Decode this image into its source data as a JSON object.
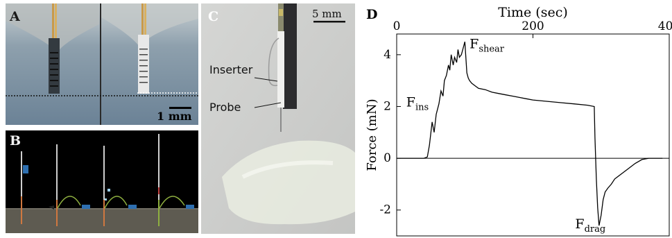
{
  "panels": {
    "a": {
      "letter": "A",
      "scale_label": "1 mm"
    },
    "b": {
      "letter": "B"
    },
    "c": {
      "letter": "C",
      "scale_label": "5 mm",
      "inserter_label": "Inserter",
      "probe_label": "Probe"
    },
    "d": {
      "letter": "D"
    }
  },
  "chart_data": {
    "type": "line",
    "title": "",
    "xlabel": "Time (sec)",
    "ylabel": "Force (mN)",
    "xaxis_position": "top",
    "xlim": [
      0,
      400
    ],
    "ylim": [
      -3,
      4.8
    ],
    "xticks": [
      0,
      200,
      400
    ],
    "yticks": [
      -2,
      0,
      2,
      4
    ],
    "grid": false,
    "zero_line": true,
    "series": [
      {
        "x": [
          0,
          10,
          20,
          30,
          40,
          45,
          48,
          52,
          55,
          58,
          62,
          65,
          68,
          70,
          73,
          76,
          78,
          80,
          83,
          85,
          88,
          90,
          92,
          95,
          97,
          100,
          103,
          105,
          107,
          110,
          115,
          120,
          130,
          140,
          150,
          160,
          170,
          180,
          190,
          200,
          220,
          240,
          260,
          280,
          290,
          291,
          293,
          295,
          297,
          300,
          303,
          306,
          310,
          315,
          320,
          330,
          340,
          350,
          360,
          370,
          380,
          390
        ],
        "y": [
          0.0,
          0.0,
          0.0,
          0.0,
          0.0,
          0.05,
          0.5,
          1.4,
          1.0,
          1.7,
          2.1,
          2.6,
          2.4,
          3.0,
          3.2,
          3.6,
          3.4,
          4.0,
          3.6,
          3.9,
          3.7,
          4.2,
          3.9,
          4.0,
          4.2,
          4.5,
          3.3,
          3.1,
          3.0,
          2.9,
          2.8,
          2.7,
          2.65,
          2.55,
          2.5,
          2.45,
          2.4,
          2.35,
          2.3,
          2.25,
          2.2,
          2.15,
          2.1,
          2.05,
          2.0,
          0.8,
          -0.8,
          -1.9,
          -2.6,
          -2.2,
          -1.6,
          -1.3,
          -1.15,
          -1.0,
          -0.8,
          -0.6,
          -0.4,
          -0.2,
          -0.05,
          0.0,
          0.0,
          0.0
        ]
      }
    ],
    "annotations": [
      {
        "base": "F",
        "sub": "ins",
        "x": 14,
        "y": 2.0
      },
      {
        "base": "F",
        "sub": "shear",
        "x": 107,
        "y": 4.25
      },
      {
        "base": "F",
        "sub": "drag",
        "x": 262,
        "y": -2.7
      }
    ]
  }
}
